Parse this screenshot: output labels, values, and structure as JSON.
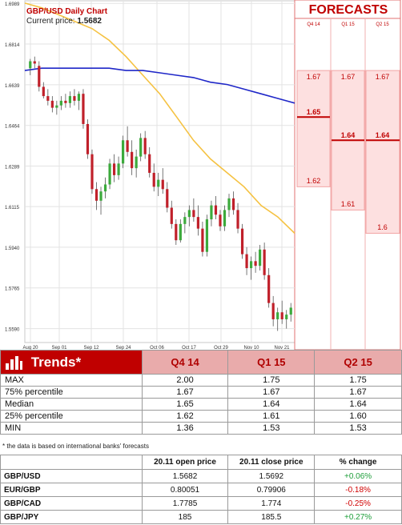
{
  "chart": {
    "title": "GBP/USD Daily Chart",
    "current_price_label": "Current price:",
    "current_price": "1.5682"
  },
  "chart_data": {
    "type": "candlestick",
    "yticks": [
      "1.6989",
      "1.6814",
      "1.6639",
      "1.6464",
      "1.6289",
      "1.6115",
      "1.5940",
      "1.5765",
      "1.5590"
    ],
    "ytick_values": [
      1.6989,
      1.6814,
      1.6639,
      1.6464,
      1.6289,
      1.6115,
      1.594,
      1.5765,
      1.559
    ],
    "ylim": [
      1.553,
      1.7
    ],
    "xticks": [
      "Aug 20",
      "Sep 01",
      "Sep 12",
      "Sep 24",
      "Oct 06",
      "Oct 17",
      "Oct 29",
      "Nov 10",
      "Nov 21"
    ],
    "candles": [
      [
        1.671,
        1.675,
        1.668,
        1.674
      ],
      [
        1.674,
        1.676,
        1.671,
        1.673
      ],
      [
        1.672,
        1.674,
        1.661,
        1.663
      ],
      [
        1.663,
        1.665,
        1.658,
        1.659
      ],
      [
        1.659,
        1.662,
        1.655,
        1.657
      ],
      [
        1.657,
        1.659,
        1.652,
        1.654
      ],
      [
        1.654,
        1.657,
        1.651,
        1.655
      ],
      [
        1.655,
        1.659,
        1.653,
        1.657
      ],
      [
        1.657,
        1.66,
        1.654,
        1.656
      ],
      [
        1.656,
        1.661,
        1.654,
        1.659
      ],
      [
        1.659,
        1.662,
        1.655,
        1.657
      ],
      [
        1.657,
        1.661,
        1.653,
        1.66
      ],
      [
        1.66,
        1.662,
        1.645,
        1.647
      ],
      [
        1.647,
        1.649,
        1.632,
        1.634
      ],
      [
        1.634,
        1.636,
        1.617,
        1.619
      ],
      [
        1.619,
        1.622,
        1.61,
        1.614
      ],
      [
        1.614,
        1.62,
        1.608,
        1.618
      ],
      [
        1.618,
        1.624,
        1.615,
        1.621
      ],
      [
        1.621,
        1.632,
        1.619,
        1.63
      ],
      [
        1.63,
        1.634,
        1.622,
        1.625
      ],
      [
        1.625,
        1.633,
        1.623,
        1.63
      ],
      [
        1.63,
        1.642,
        1.628,
        1.64
      ],
      [
        1.64,
        1.646,
        1.633,
        1.635
      ],
      [
        1.635,
        1.64,
        1.625,
        1.628
      ],
      [
        1.628,
        1.636,
        1.624,
        1.633
      ],
      [
        1.633,
        1.643,
        1.631,
        1.641
      ],
      [
        1.641,
        1.644,
        1.632,
        1.634
      ],
      [
        1.634,
        1.637,
        1.624,
        1.626
      ],
      [
        1.626,
        1.63,
        1.618,
        1.62
      ],
      [
        1.62,
        1.626,
        1.616,
        1.623
      ],
      [
        1.623,
        1.628,
        1.617,
        1.619
      ],
      [
        1.619,
        1.622,
        1.609,
        1.611
      ],
      [
        1.611,
        1.614,
        1.602,
        1.604
      ],
      [
        1.604,
        1.606,
        1.595,
        1.597
      ],
      [
        1.597,
        1.606,
        1.596,
        1.604
      ],
      [
        1.604,
        1.609,
        1.6,
        1.607
      ],
      [
        1.607,
        1.612,
        1.603,
        1.61
      ],
      [
        1.61,
        1.615,
        1.605,
        1.607
      ],
      [
        1.607,
        1.612,
        1.599,
        1.602
      ],
      [
        1.602,
        1.605,
        1.59,
        1.592
      ],
      [
        1.592,
        1.608,
        1.59,
        1.606
      ],
      [
        1.606,
        1.614,
        1.603,
        1.612
      ],
      [
        1.612,
        1.616,
        1.606,
        1.608
      ],
      [
        1.608,
        1.61,
        1.601,
        1.603
      ],
      [
        1.603,
        1.612,
        1.601,
        1.61
      ],
      [
        1.61,
        1.617,
        1.607,
        1.615
      ],
      [
        1.615,
        1.618,
        1.608,
        1.61
      ],
      [
        1.61,
        1.613,
        1.6,
        1.602
      ],
      [
        1.602,
        1.604,
        1.589,
        1.591
      ],
      [
        1.591,
        1.594,
        1.582,
        1.585
      ],
      [
        1.585,
        1.59,
        1.58,
        1.588
      ],
      [
        1.588,
        1.592,
        1.583,
        1.586
      ],
      [
        1.586,
        1.595,
        1.584,
        1.593
      ],
      [
        1.593,
        1.596,
        1.58,
        1.582
      ],
      [
        1.582,
        1.585,
        1.568,
        1.57
      ],
      [
        1.57,
        1.573,
        1.56,
        1.563
      ],
      [
        1.563,
        1.568,
        1.558,
        1.566
      ],
      [
        1.566,
        1.571,
        1.561,
        1.563
      ],
      [
        1.563,
        1.567,
        1.559,
        1.565
      ],
      [
        1.565,
        1.57,
        1.562,
        1.568
      ]
    ],
    "moving_average_1": {
      "color": "#f5c242",
      "values": [
        1.699,
        1.697,
        1.694,
        1.691,
        1.688,
        1.683,
        1.676,
        1.668,
        1.66,
        1.65,
        1.64,
        1.632,
        1.626,
        1.62,
        1.612,
        1.607,
        1.6
      ]
    },
    "moving_average_2": {
      "color": "#1f27c8",
      "values": [
        1.67,
        1.671,
        1.671,
        1.671,
        1.671,
        1.671,
        1.67,
        1.67,
        1.669,
        1.668,
        1.667,
        1.665,
        1.664,
        1.662,
        1.66,
        1.658,
        1.656
      ]
    }
  },
  "forecasts": {
    "title": "FORECASTS",
    "headers": [
      "Q4 14",
      "Q1 15",
      "Q2 15"
    ],
    "p75": [
      "1.67",
      "1.67",
      "1.67"
    ],
    "median": [
      "1.65",
      "1.64",
      "1.64"
    ],
    "p25": [
      "1.62",
      "1.61",
      "1.6"
    ],
    "p75_values": [
      1.67,
      1.67,
      1.67
    ],
    "median_values": [
      1.65,
      1.64,
      1.64
    ],
    "p25_values": [
      1.62,
      1.61,
      1.6
    ]
  },
  "trends": {
    "title": "Trends*",
    "columns": [
      "Q4 14",
      "Q1 15",
      "Q2 15"
    ],
    "rows": [
      {
        "label": "MAX",
        "values": [
          "2.00",
          "1.75",
          "1.75"
        ]
      },
      {
        "label": "75% percentile",
        "values": [
          "1.67",
          "1.67",
          "1.67"
        ]
      },
      {
        "label": "Median",
        "values": [
          "1.65",
          "1.64",
          "1.64"
        ]
      },
      {
        "label": "25% percentile",
        "values": [
          "1.62",
          "1.61",
          "1.60"
        ]
      },
      {
        "label": "MIN",
        "values": [
          "1.36",
          "1.53",
          "1.53"
        ]
      }
    ],
    "footnote": "* the data is based on international banks' forecasts"
  },
  "quotes": {
    "columns": [
      "",
      "20.11 open price",
      "20.11 close price",
      "% change"
    ],
    "rows": [
      {
        "pair": "GBP/USD",
        "open": "1.5682",
        "close": "1.5692",
        "change": "+0.06%",
        "positive": true
      },
      {
        "pair": "EUR/GBP",
        "open": "0.80051",
        "close": "0.79906",
        "change": "-0.18%",
        "positive": false
      },
      {
        "pair": "GBP/CAD",
        "open": "1.7785",
        "close": "1.774",
        "change": "-0.25%",
        "positive": false
      },
      {
        "pair": "GBP/JPY",
        "open": "185",
        "close": "185.5",
        "change": "+0.27%",
        "positive": true
      }
    ]
  },
  "colors": {
    "accent_red": "#c00000",
    "header_pink": "#e9abab",
    "forecast_fill": "#fde0e0",
    "bull_candle": "#3caa3c",
    "bear_candle": "#c0202a"
  }
}
